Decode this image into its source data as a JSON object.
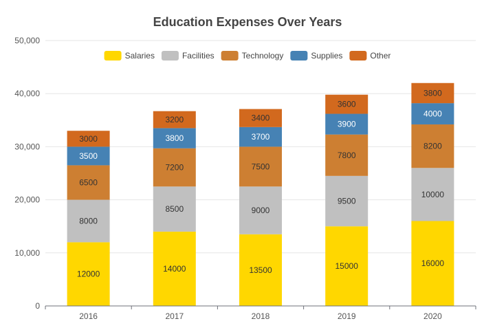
{
  "chart_data": {
    "type": "bar",
    "stacked": true,
    "title": "Education Expenses Over Years",
    "xlabel": "",
    "ylabel": "",
    "categories": [
      "2016",
      "2017",
      "2018",
      "2019",
      "2020"
    ],
    "ylim": [
      0,
      50000
    ],
    "yticks": [
      0,
      10000,
      20000,
      30000,
      40000,
      50000
    ],
    "ytick_labels": [
      "0",
      "10,000",
      "20,000",
      "30,000",
      "40,000",
      "50,000"
    ],
    "grid": true,
    "legend_position": "top",
    "series": [
      {
        "name": "Salaries",
        "color": "#FFD700",
        "label_color": "#333333",
        "values": [
          12000,
          14000,
          13500,
          15000,
          16000
        ]
      },
      {
        "name": "Facilities",
        "color": "#C0C0C0",
        "label_color": "#333333",
        "values": [
          8000,
          8500,
          9000,
          9500,
          10000
        ]
      },
      {
        "name": "Technology",
        "color": "#CD7F32",
        "label_color": "#333333",
        "values": [
          6500,
          7200,
          7500,
          7800,
          8200
        ]
      },
      {
        "name": "Supplies",
        "color": "#4682B4",
        "label_color": "#ffffff",
        "values": [
          3500,
          3800,
          3700,
          3900,
          4000
        ]
      },
      {
        "name": "Other",
        "color": "#D2691E",
        "label_color": "#333333",
        "values": [
          3000,
          3200,
          3400,
          3600,
          3800
        ]
      }
    ]
  }
}
